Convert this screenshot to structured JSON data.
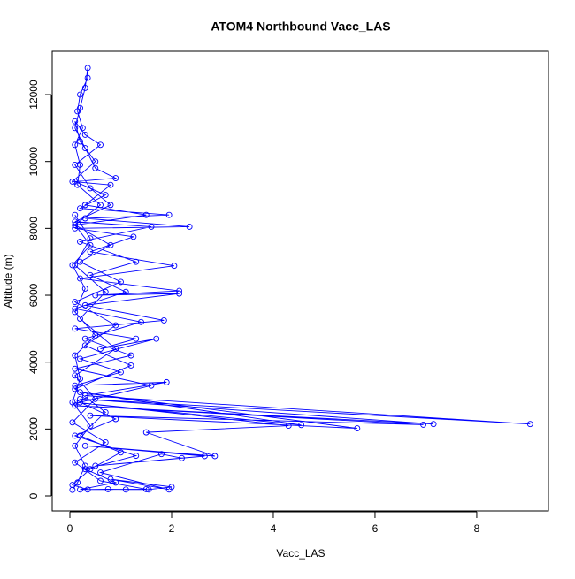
{
  "chart_data": {
    "type": "line",
    "title": "ATOM4 Northbound Vacc_LAS",
    "xlabel": "Vacc_LAS",
    "ylabel": "Altitude (m)",
    "xlim": [
      -0.348,
      9.41
    ],
    "ylim": [
      -449,
      13296
    ],
    "xticks": [
      0,
      2,
      4,
      6,
      8
    ],
    "yticks": [
      0,
      2000,
      4000,
      6000,
      8000,
      10000,
      12000
    ],
    "series": [
      {
        "color": "#0000ff",
        "x": [
          0.05,
          0.15,
          0.3,
          0.1,
          0.4,
          0.05,
          0.2,
          0.1,
          0.5,
          0.1,
          0.3,
          0.05,
          0.4,
          0.1,
          0.6,
          0.15,
          0.2,
          0.1,
          0.25,
          0.15,
          0.2,
          0.35,
          0.35,
          0.3,
          0.2,
          0.1,
          0.3,
          0.5,
          0.9,
          0.1,
          0.7,
          0.2,
          1.95,
          0.3,
          2.35,
          0.1,
          1.25,
          0.4,
          2.05,
          0.2,
          2.15,
          0.5,
          2.15,
          0.3,
          1.85,
          0.1,
          1.3,
          0.6,
          1.7,
          0.2,
          1.0,
          0.1,
          1.9,
          0.3,
          9.05,
          0.2,
          7.15,
          0.1,
          6.95,
          0.4,
          5.65,
          0.2,
          4.55,
          0.1,
          4.3,
          1.5,
          2.85,
          0.3,
          2.65,
          0.5,
          2.2,
          1.8,
          0.6,
          1.95,
          0.8,
          2.0,
          1.55,
          1.1,
          0.75,
          0.35,
          0.05,
          0.4,
          1.0,
          0.2,
          0.7,
          0.1,
          1.2,
          0.3,
          0.9,
          0.1,
          1.0,
          0.2,
          0.8,
          0.1,
          1.5,
          0.3,
          0.8,
          0.05,
          0.5,
          0.2,
          0.1,
          0.3,
          0.6,
          0.1,
          0.4,
          0.8,
          0.1,
          1.6,
          0.2,
          1.3,
          0.4,
          1.1,
          0.1,
          1.4,
          0.3,
          1.2,
          0.1,
          1.6,
          0.2,
          0.9,
          0.1,
          1.3,
          0.3,
          0.9,
          0.2,
          1.5,
          0.6,
          0.1,
          0.7,
          0.05,
          0.5,
          0.1,
          0.9,
          0.2,
          0.7,
          0.1,
          0.4,
          0.1
        ],
        "values": [
          180,
          400,
          900,
          1500,
          2100,
          2800,
          3500,
          4200,
          4800,
          5500,
          6200,
          6900,
          7500,
          8100,
          8700,
          9300,
          9900,
          10500,
          11000,
          11500,
          12000,
          12500,
          12800,
          12200,
          11600,
          11000,
          10400,
          9800,
          9500,
          9400,
          9000,
          8600,
          8400,
          8300,
          8050,
          8000,
          7750,
          7300,
          6880,
          6500,
          6130,
          6000,
          6050,
          5700,
          5250,
          5000,
          4700,
          4400,
          4700,
          4100,
          3700,
          3300,
          3400,
          3000,
          2150,
          2900,
          2150,
          2700,
          2130,
          2400,
          2020,
          3100,
          2120,
          2800,
          2100,
          1900,
          1190,
          1500,
          1190,
          900,
          1130,
          1250,
          700,
          190,
          500,
          270,
          190,
          190,
          200,
          190,
          330,
          800,
          1300,
          1800,
          2500,
          3200,
          3900,
          4500,
          5100,
          5800,
          6400,
          7000,
          7500,
          8100,
          8400,
          8700,
          9300,
          9400,
          10000,
          10600,
          11200,
          10800,
          10500,
          9900,
          9200,
          8700,
          8200,
          8050,
          7600,
          7000,
          6600,
          6100,
          5600,
          5200,
          4700,
          4200,
          3800,
          3300,
          2800,
          2300,
          1800,
          1200,
          800,
          400,
          190,
          200,
          450,
          1000,
          1600,
          2200,
          2900,
          3600,
          4400,
          5300,
          6100,
          6900,
          7700,
          8400
        ]
      }
    ]
  }
}
